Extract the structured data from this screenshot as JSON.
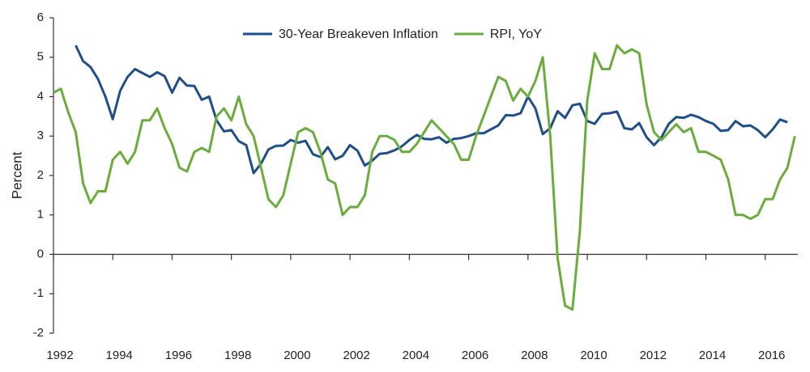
{
  "chart_data": {
    "type": "line",
    "y_label": "Percent",
    "xlim": [
      1992,
      2017.1
    ],
    "xticks": [
      1992,
      1994,
      1996,
      1998,
      2000,
      2002,
      2004,
      2006,
      2008,
      2010,
      2012,
      2014,
      2016
    ],
    "ylim": [
      -2,
      6
    ],
    "yticks": [
      -2,
      -1,
      0,
      1,
      2,
      3,
      4,
      5,
      6
    ],
    "grid": false,
    "legend": "top",
    "series": [
      {
        "name": "30-Year Breakeven Inflation",
        "color": "#1f4e8c",
        "x": [
          1992.75,
          1993,
          1993.25,
          1993.5,
          1993.75,
          1994,
          1994.25,
          1994.5,
          1994.75,
          1995,
          1995.25,
          1995.5,
          1995.75,
          1996,
          1996.25,
          1996.5,
          1996.75,
          1997,
          1997.25,
          1997.5,
          1997.75,
          1998,
          1998.25,
          1998.5,
          1998.75,
          1999,
          1999.25,
          1999.5,
          1999.75,
          2000,
          2000.25,
          2000.5,
          2000.75,
          2001,
          2001.25,
          2001.5,
          2001.75,
          2002,
          2002.25,
          2002.5,
          2002.75,
          2003,
          2003.25,
          2003.5,
          2003.75,
          2004,
          2004.25,
          2004.5,
          2004.75,
          2005,
          2005.25,
          2005.5,
          2005.75,
          2006,
          2006.25,
          2006.5,
          2006.75,
          2007,
          2007.25,
          2007.5,
          2007.75,
          2008,
          2008.25,
          2008.5,
          2008.75,
          2009,
          2009.25,
          2009.5,
          2009.75,
          2010,
          2010.25,
          2010.5,
          2010.75,
          2011,
          2011.25,
          2011.5,
          2011.75,
          2012,
          2012.25,
          2012.5,
          2012.75,
          2013,
          2013.25,
          2013.5,
          2013.75,
          2014,
          2014.25,
          2014.5,
          2014.75,
          2015,
          2015.25,
          2015.5,
          2015.75,
          2016,
          2016.25,
          2016.5,
          2016.75
        ],
        "values": [
          5.3,
          4.9,
          4.75,
          4.45,
          4.0,
          3.43,
          4.15,
          4.5,
          4.7,
          4.6,
          4.5,
          4.62,
          4.52,
          4.1,
          4.48,
          4.28,
          4.27,
          3.92,
          4.0,
          3.4,
          3.12,
          3.15,
          2.87,
          2.77,
          2.06,
          2.3,
          2.66,
          2.75,
          2.76,
          2.9,
          2.83,
          2.88,
          2.54,
          2.47,
          2.72,
          2.41,
          2.5,
          2.77,
          2.63,
          2.25,
          2.38,
          2.55,
          2.57,
          2.64,
          2.74,
          2.9,
          3.03,
          2.93,
          2.92,
          2.97,
          2.83,
          2.93,
          2.95,
          3.0,
          3.07,
          3.07,
          3.17,
          3.27,
          3.53,
          3.52,
          3.58,
          4.0,
          3.7,
          3.05,
          3.2,
          3.63,
          3.46,
          3.78,
          3.82,
          3.38,
          3.31,
          3.56,
          3.58,
          3.62,
          3.2,
          3.17,
          3.33,
          2.97,
          2.77,
          2.97,
          3.31,
          3.48,
          3.46,
          3.54,
          3.48,
          3.38,
          3.31,
          3.13,
          3.15,
          3.38,
          3.25,
          3.27,
          3.15,
          2.97,
          3.17,
          3.42,
          3.35
        ]
      },
      {
        "name": "RPI, YoY",
        "color": "#6aad3d",
        "x": [
          1992,
          1992.25,
          1992.5,
          1992.75,
          1993,
          1993.25,
          1993.5,
          1993.75,
          1994,
          1994.25,
          1994.5,
          1994.75,
          1995,
          1995.25,
          1995.5,
          1995.75,
          1996,
          1996.25,
          1996.5,
          1996.75,
          1997,
          1997.25,
          1997.5,
          1997.75,
          1998,
          1998.25,
          1998.5,
          1998.75,
          1999,
          1999.25,
          1999.5,
          1999.75,
          2000,
          2000.25,
          2000.5,
          2000.75,
          2001,
          2001.25,
          2001.5,
          2001.75,
          2002,
          2002.25,
          2002.5,
          2002.75,
          2003,
          2003.25,
          2003.5,
          2003.75,
          2004,
          2004.25,
          2004.5,
          2004.75,
          2005,
          2005.25,
          2005.5,
          2005.75,
          2006,
          2006.25,
          2006.5,
          2006.75,
          2007,
          2007.25,
          2007.5,
          2007.75,
          2008,
          2008.25,
          2008.5,
          2008.75,
          2009,
          2009.25,
          2009.5,
          2009.75,
          2010,
          2010.25,
          2010.5,
          2010.75,
          2011,
          2011.25,
          2011.5,
          2011.75,
          2012,
          2012.25,
          2012.5,
          2012.75,
          2013,
          2013.25,
          2013.5,
          2013.75,
          2014,
          2014.25,
          2014.5,
          2014.75,
          2015,
          2015.25,
          2015.5,
          2015.75,
          2016,
          2016.25,
          2016.5,
          2016.75,
          2017
        ],
        "values": [
          4.1,
          4.2,
          3.6,
          3.1,
          1.8,
          1.3,
          1.6,
          1.6,
          2.4,
          2.6,
          2.3,
          2.6,
          3.4,
          3.4,
          3.7,
          3.2,
          2.8,
          2.2,
          2.1,
          2.6,
          2.7,
          2.6,
          3.5,
          3.7,
          3.4,
          4.0,
          3.3,
          3.0,
          2.2,
          1.4,
          1.2,
          1.5,
          2.3,
          3.1,
          3.2,
          3.1,
          2.6,
          1.9,
          1.8,
          1.0,
          1.2,
          1.2,
          1.5,
          2.6,
          3.0,
          3.0,
          2.9,
          2.6,
          2.6,
          2.8,
          3.1,
          3.4,
          3.2,
          3.0,
          2.8,
          2.4,
          2.4,
          3.0,
          3.5,
          4.0,
          4.5,
          4.4,
          3.9,
          4.2,
          4.0,
          4.4,
          5.0,
          3.0,
          -0.1,
          -1.3,
          -1.4,
          0.6,
          3.9,
          5.1,
          4.7,
          4.7,
          5.3,
          5.1,
          5.2,
          5.1,
          3.8,
          3.1,
          2.9,
          3.1,
          3.3,
          3.1,
          3.2,
          2.6,
          2.6,
          2.5,
          2.4,
          1.9,
          1.0,
          1.0,
          0.9,
          1.0,
          1.4,
          1.4,
          1.9,
          2.2,
          3.0
        ]
      }
    ]
  }
}
